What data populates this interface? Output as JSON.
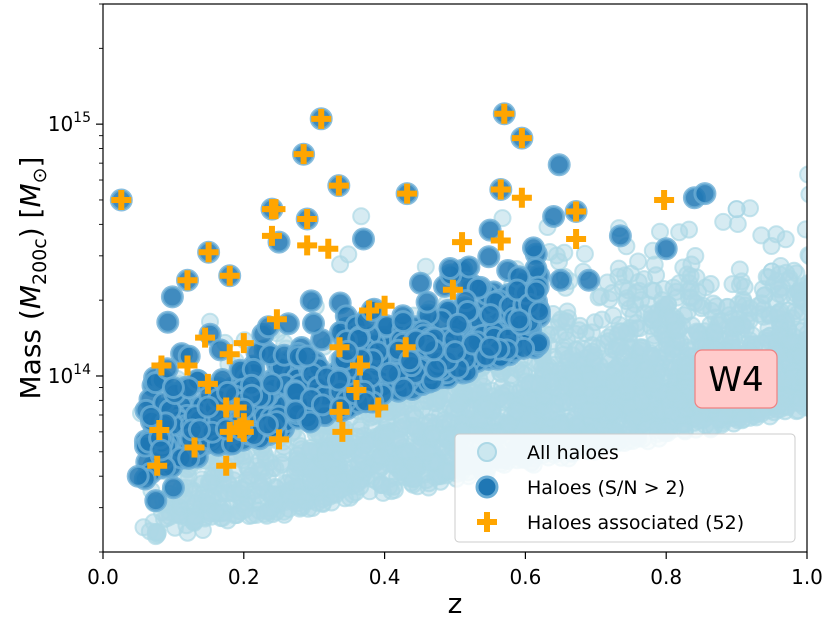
{
  "chart_data": {
    "type": "scatter",
    "xlabel": "z",
    "ylabel": "Mass (M200c) [M⊙]",
    "ylabel_parts": {
      "pre": "Mass (",
      "M": "M",
      "sub": "200c",
      "mid": ") [",
      "M2": "M",
      "sun": "⊙",
      "post": "]"
    },
    "xlim": [
      0.0,
      1.0
    ],
    "ylim": [
      20000000000000.0,
      3000000000000000.0
    ],
    "yscale": "log",
    "x_ticks": [
      0.0,
      0.2,
      0.4,
      0.6,
      0.8,
      1.0
    ],
    "x_tick_labels": [
      "0.0",
      "0.2",
      "0.4",
      "0.6",
      "0.8",
      "1.0"
    ],
    "y_ticks": [
      100000000000000.0,
      1000000000000000.0
    ],
    "y_tick_labels": [
      {
        "base": "10",
        "exp": "14"
      },
      {
        "base": "10",
        "exp": "15"
      }
    ],
    "annotation": {
      "text": "W4",
      "x": 0.9,
      "y": 100000000000000.0
    },
    "legend_position": "lower-right",
    "colors": {
      "all": "#add8e6",
      "sn": "#1f77b4",
      "sn_edge": "#6baed6",
      "assoc": "#ffa500",
      "annot_bg": "#ffcccc",
      "annot_edge": "#f08080"
    },
    "series": [
      {
        "name": "All haloes",
        "marker": "circle",
        "generated": true,
        "count": 2600,
        "seed": 7,
        "description_of_locus": "dense distribution filling lower-right region below detection threshold",
        "sample_points": [
          [
            0.9,
            460000000000000.0
          ],
          [
            0.95,
            260000000000000.0
          ],
          [
            0.78,
            120000000000000.0
          ],
          [
            0.6,
            60000000000000.0
          ],
          [
            0.3,
            40000000000000.0
          ]
        ]
      },
      {
        "name": "Haloes (S/N > 2)",
        "marker": "circle",
        "generated": true,
        "count": 650,
        "seed": 11,
        "points": [
          [
            0.026,
            500000000000000.0
          ],
          [
            0.31,
            1050000000000000.0
          ],
          [
            0.57,
            1100000000000000.0
          ],
          [
            0.595,
            880000000000000.0
          ],
          [
            0.285,
            760000000000000.0
          ],
          [
            0.648,
            690000000000000.0
          ],
          [
            0.335,
            570000000000000.0
          ],
          [
            0.432,
            530000000000000.0
          ],
          [
            0.565,
            550000000000000.0
          ],
          [
            0.84,
            510000000000000.0
          ],
          [
            0.855,
            530000000000000.0
          ],
          [
            0.24,
            460000000000000.0
          ],
          [
            0.29,
            420000000000000.0
          ],
          [
            0.64,
            430000000000000.0
          ],
          [
            0.672,
            450000000000000.0
          ],
          [
            0.735,
            360000000000000.0
          ],
          [
            0.8,
            320000000000000.0
          ],
          [
            0.37,
            350000000000000.0
          ],
          [
            0.25,
            340000000000000.0
          ],
          [
            0.15,
            310000000000000.0
          ],
          [
            0.12,
            240000000000000.0
          ],
          [
            0.18,
            250000000000000.0
          ],
          [
            0.62,
            180000000000000.0
          ],
          [
            0.65,
            240000000000000.0
          ],
          [
            0.69,
            240000000000000.0
          ],
          [
            0.55,
            130000000000000.0
          ],
          [
            0.5,
            125000000000000.0
          ],
          [
            0.46,
            135000000000000.0
          ],
          [
            0.06,
            39000000000000.0
          ],
          [
            0.075,
            32000000000000.0
          ],
          [
            0.05,
            40000000000000.0
          ],
          [
            0.1,
            36000000000000.0
          ],
          [
            0.1,
            90000000000000.0
          ]
        ]
      },
      {
        "name": "Haloes associated (52)",
        "marker": "plus",
        "points": [
          [
            0.026,
            500000000000000.0
          ],
          [
            0.31,
            1050000000000000.0
          ],
          [
            0.57,
            1100000000000000.0
          ],
          [
            0.595,
            880000000000000.0
          ],
          [
            0.285,
            760000000000000.0
          ],
          [
            0.335,
            570000000000000.0
          ],
          [
            0.432,
            530000000000000.0
          ],
          [
            0.565,
            550000000000000.0
          ],
          [
            0.595,
            510000000000000.0
          ],
          [
            0.797,
            500000000000000.0
          ],
          [
            0.24,
            460000000000000.0
          ],
          [
            0.672,
            450000000000000.0
          ],
          [
            0.29,
            420000000000000.0
          ],
          [
            0.24,
            360000000000000.0
          ],
          [
            0.29,
            330000000000000.0
          ],
          [
            0.32,
            320000000000000.0
          ],
          [
            0.51,
            340000000000000.0
          ],
          [
            0.565,
            345000000000000.0
          ],
          [
            0.672,
            350000000000000.0
          ],
          [
            0.15,
            310000000000000.0
          ],
          [
            0.12,
            240000000000000.0
          ],
          [
            0.18,
            250000000000000.0
          ],
          [
            0.497,
            220000000000000.0
          ],
          [
            0.4,
            190000000000000.0
          ],
          [
            0.378,
            182000000000000.0
          ],
          [
            0.247,
            168000000000000.0
          ],
          [
            0.145,
            142000000000000.0
          ],
          [
            0.2,
            135000000000000.0
          ],
          [
            0.18,
            122000000000000.0
          ],
          [
            0.336,
            130000000000000.0
          ],
          [
            0.43,
            130000000000000.0
          ],
          [
            0.12,
            110000000000000.0
          ],
          [
            0.083,
            110000000000000.0
          ],
          [
            0.365,
            110000000000000.0
          ],
          [
            0.149,
            93000000000000.0
          ],
          [
            0.36,
            88000000000000.0
          ],
          [
            0.175,
            75000000000000.0
          ],
          [
            0.19,
            75000000000000.0
          ],
          [
            0.336,
            72000000000000.0
          ],
          [
            0.391,
            75000000000000.0
          ],
          [
            0.2,
            65000000000000.0
          ],
          [
            0.195,
            62000000000000.0
          ],
          [
            0.18,
            60000000000000.0
          ],
          [
            0.2,
            60000000000000.0
          ],
          [
            0.08,
            61000000000000.0
          ],
          [
            0.34,
            60000000000000.0
          ],
          [
            0.25,
            56000000000000.0
          ],
          [
            0.13,
            52000000000000.0
          ],
          [
            0.077,
            44000000000000.0
          ],
          [
            0.175,
            44000000000000.0
          ],
          [
            0.12,
            110000000000000.0
          ],
          [
            0.245,
            460000000000000.0
          ]
        ]
      }
    ],
    "legend": [
      {
        "label": "All haloes",
        "marker": "circle-light"
      },
      {
        "label": "Haloes (S/N > 2)",
        "marker": "circle-dark"
      },
      {
        "label": "Haloes associated (52)",
        "marker": "plus"
      }
    ]
  }
}
